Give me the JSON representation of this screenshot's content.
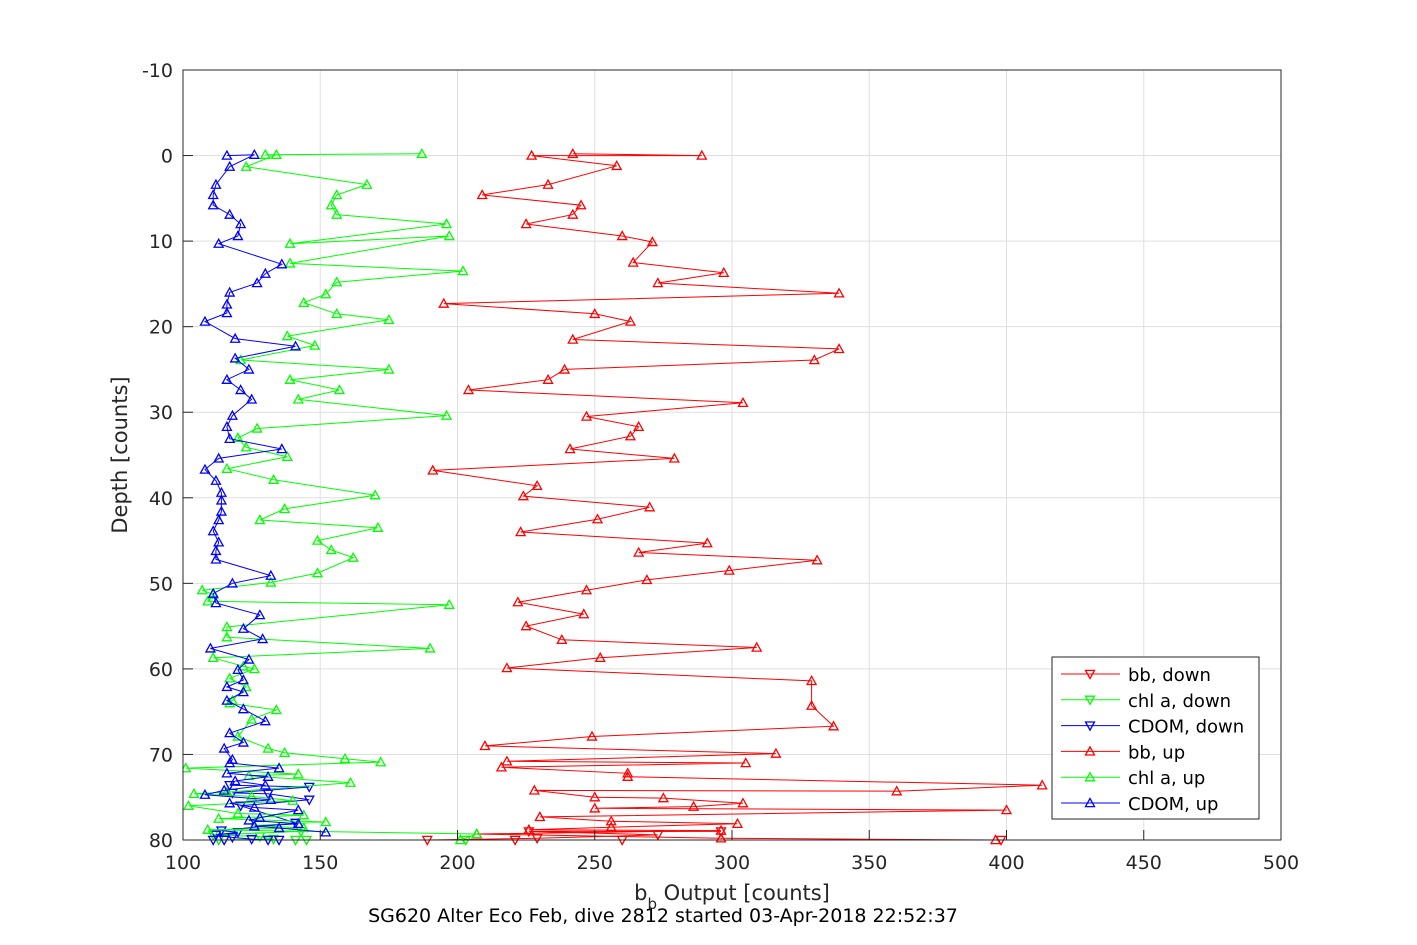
{
  "chart_data": {
    "type": "line",
    "xlabel": "b",
    "xlabel_sub": "b",
    "xlabel_rest": " Output [counts]",
    "ylabel": "Depth [counts]",
    "caption": "SG620 Alter Eco Feb, dive 2812 started 03-Apr-2018 22:52:37",
    "xlim": [
      100,
      500
    ],
    "ylim": [
      -10,
      80
    ],
    "y_reversed": true,
    "grid": true,
    "xticks": [
      "100",
      "150",
      "200",
      "250",
      "300",
      "350",
      "400",
      "450",
      "500"
    ],
    "yticks": [
      "-10",
      "0",
      "10",
      "20",
      "30",
      "40",
      "50",
      "60",
      "70",
      "80"
    ],
    "legend_position": "bottom-right",
    "series": [
      {
        "name": "bb, down",
        "color": "#ff0000",
        "marker": "down",
        "points": [
          [
            296,
            79
          ],
          [
            226,
            79
          ],
          [
            273,
            79.4
          ],
          [
            229,
            79.8
          ],
          [
            189,
            80
          ],
          [
            221,
            80
          ],
          [
            260,
            80
          ],
          [
            398,
            80
          ]
        ]
      },
      {
        "name": "chl a, down",
        "color": "#00ff00",
        "marker": "down",
        "points": [
          [
            143,
            79
          ],
          [
            111,
            79.4
          ],
          [
            128,
            79.6
          ],
          [
            133,
            79.9
          ],
          [
            113,
            80
          ],
          [
            141,
            80
          ],
          [
            145,
            80
          ],
          [
            203,
            80
          ]
        ]
      },
      {
        "name": "CDOM, down",
        "color": "#0000ff",
        "marker": "down",
        "points": [
          [
            117,
            73.6
          ],
          [
            146,
            73.8
          ],
          [
            118,
            74.5
          ],
          [
            131,
            74.6
          ],
          [
            146,
            75.3
          ],
          [
            121,
            76
          ],
          [
            141,
            78
          ],
          [
            114,
            78.9
          ],
          [
            120,
            79.1
          ],
          [
            112,
            79.4
          ],
          [
            118,
            79.7
          ],
          [
            125,
            79.9
          ],
          [
            131,
            80
          ],
          [
            115,
            80
          ],
          [
            111,
            80
          ],
          [
            135,
            80
          ]
        ]
      },
      {
        "name": "bb, up",
        "color": "#ff0000",
        "marker": "up",
        "points": [
          [
            396,
            80
          ],
          [
            296,
            79.8
          ],
          [
            207,
            79.3
          ],
          [
            296,
            78.9
          ],
          [
            226,
            78.8
          ],
          [
            256,
            78.5
          ],
          [
            302,
            78.1
          ],
          [
            256,
            77.8
          ],
          [
            230,
            77.3
          ],
          [
            400,
            76.5
          ],
          [
            250,
            76.3
          ],
          [
            286,
            76.1
          ],
          [
            304,
            75.7
          ],
          [
            275,
            75.1
          ],
          [
            250,
            75
          ],
          [
            228,
            74.2
          ],
          [
            360,
            74.3
          ],
          [
            413,
            73.6
          ],
          [
            262,
            72.6
          ],
          [
            262,
            72.2
          ],
          [
            216,
            71.5
          ],
          [
            305,
            71
          ],
          [
            218,
            70.8
          ],
          [
            316,
            69.9
          ],
          [
            210,
            69
          ],
          [
            249,
            67.9
          ],
          [
            337,
            66.7
          ],
          [
            329,
            64.3
          ],
          [
            329,
            61.4
          ],
          [
            218,
            59.9
          ],
          [
            252,
            58.7
          ],
          [
            309,
            57.5
          ],
          [
            238,
            56.6
          ],
          [
            225,
            55
          ],
          [
            246,
            53.6
          ],
          [
            222,
            52.2
          ],
          [
            247,
            50.8
          ],
          [
            269,
            49.6
          ],
          [
            299,
            48.5
          ],
          [
            331,
            47.3
          ],
          [
            266,
            46.4
          ],
          [
            291,
            45.3
          ],
          [
            223,
            44
          ],
          [
            251,
            42.5
          ],
          [
            270,
            41.1
          ],
          [
            224,
            39.8
          ],
          [
            229,
            38.6
          ],
          [
            191,
            36.8
          ],
          [
            279,
            35.4
          ],
          [
            241,
            34.3
          ],
          [
            263,
            32.8
          ],
          [
            266,
            31.7
          ],
          [
            247,
            30.5
          ],
          [
            304,
            28.9
          ],
          [
            204,
            27.4
          ],
          [
            233,
            26.2
          ],
          [
            239,
            25
          ],
          [
            330,
            23.9
          ],
          [
            339,
            22.6
          ],
          [
            242,
            21.5
          ],
          [
            263,
            19.4
          ],
          [
            250,
            18.5
          ],
          [
            195,
            17.3
          ],
          [
            339,
            16.1
          ],
          [
            273,
            14.9
          ],
          [
            297,
            13.7
          ],
          [
            264,
            12.5
          ],
          [
            271,
            10.1
          ],
          [
            260,
            9.4
          ],
          [
            225,
            8
          ],
          [
            242,
            6.9
          ],
          [
            245,
            5.8
          ],
          [
            209,
            4.6
          ],
          [
            233,
            3.4
          ],
          [
            258,
            1.2
          ],
          [
            227,
            0
          ],
          [
            289,
            0
          ],
          [
            242,
            -0.2
          ]
        ]
      },
      {
        "name": "chl a, up",
        "color": "#00ff00",
        "marker": "up",
        "points": [
          [
            201,
            80
          ],
          [
            207,
            79.3
          ],
          [
            109,
            78.8
          ],
          [
            144,
            78.6
          ],
          [
            126,
            78.3
          ],
          [
            152,
            77.9
          ],
          [
            113,
            77.5
          ],
          [
            144,
            77.1
          ],
          [
            120,
            76.9
          ],
          [
            102,
            76
          ],
          [
            140,
            75.4
          ],
          [
            125,
            74.9
          ],
          [
            104,
            74.6
          ],
          [
            116,
            74.4
          ],
          [
            161,
            73.3
          ],
          [
            124,
            72.5
          ],
          [
            142,
            72.3
          ],
          [
            101,
            71.6
          ],
          [
            172,
            70.9
          ],
          [
            159,
            70.5
          ],
          [
            137,
            69.8
          ],
          [
            131,
            69.3
          ],
          [
            120,
            67.9
          ],
          [
            125,
            65.9
          ],
          [
            134,
            64.8
          ],
          [
            117,
            64
          ],
          [
            118,
            63.7
          ],
          [
            123,
            62.1
          ],
          [
            117,
            61.1
          ],
          [
            126,
            60
          ],
          [
            122,
            59.7
          ],
          [
            111,
            58.7
          ],
          [
            190,
            57.6
          ],
          [
            116,
            56.3
          ],
          [
            116,
            55.1
          ],
          [
            197,
            52.5
          ],
          [
            109,
            52.1
          ],
          [
            111,
            51.3
          ],
          [
            107,
            50.8
          ],
          [
            132,
            49.9
          ],
          [
            149,
            48.8
          ],
          [
            162,
            47
          ],
          [
            154,
            46.1
          ],
          [
            149,
            45
          ],
          [
            171,
            43.5
          ],
          [
            128,
            42.6
          ],
          [
            137,
            41.3
          ],
          [
            170,
            39.7
          ],
          [
            133,
            37.9
          ],
          [
            116,
            36.6
          ],
          [
            138,
            35.2
          ],
          [
            123,
            34.1
          ],
          [
            120,
            33
          ],
          [
            127,
            31.9
          ],
          [
            196,
            30.4
          ],
          [
            142,
            28.5
          ],
          [
            157,
            27.4
          ],
          [
            139,
            26.2
          ],
          [
            175,
            25
          ],
          [
            121,
            23.9
          ],
          [
            148,
            22.2
          ],
          [
            138,
            21.1
          ],
          [
            175,
            19.2
          ],
          [
            156,
            18.5
          ],
          [
            144,
            17.2
          ],
          [
            152,
            16.2
          ],
          [
            156,
            14.8
          ],
          [
            202,
            13.5
          ],
          [
            139,
            12.6
          ],
          [
            197,
            9.4
          ],
          [
            139,
            10.3
          ],
          [
            196,
            8
          ],
          [
            156,
            6.9
          ],
          [
            154,
            5.8
          ],
          [
            156,
            4.6
          ],
          [
            167,
            3.4
          ],
          [
            123,
            1.3
          ],
          [
            134,
            -0.1
          ],
          [
            130,
            -0.1
          ],
          [
            187,
            -0.2
          ]
        ]
      },
      {
        "name": "CDOM, up",
        "color": "#0000ff",
        "marker": "up",
        "points": [
          [
            152,
            79.1
          ],
          [
            135,
            78.6
          ],
          [
            126,
            78.4
          ],
          [
            142,
            78.1
          ],
          [
            124,
            77.7
          ],
          [
            128,
            77.4
          ],
          [
            142,
            76.5
          ],
          [
            126,
            76.2
          ],
          [
            117,
            75.7
          ],
          [
            132,
            75.3
          ],
          [
            108,
            74.7
          ],
          [
            115,
            74.2
          ],
          [
            130,
            73.6
          ],
          [
            119,
            73.1
          ],
          [
            131,
            72.6
          ],
          [
            116,
            72.2
          ],
          [
            135,
            71.6
          ],
          [
            117,
            71
          ],
          [
            118,
            70.6
          ],
          [
            115,
            69.3
          ],
          [
            122,
            68.6
          ],
          [
            117,
            67.5
          ],
          [
            130,
            66.1
          ],
          [
            122,
            64.7
          ],
          [
            116,
            63.7
          ],
          [
            122,
            62.7
          ],
          [
            116,
            62.1
          ],
          [
            122,
            61.3
          ],
          [
            120,
            60.1
          ],
          [
            124,
            58.9
          ],
          [
            110,
            57.6
          ],
          [
            129,
            56.5
          ],
          [
            122,
            55.3
          ],
          [
            128,
            53.7
          ],
          [
            112,
            52.3
          ],
          [
            111,
            51.2
          ],
          [
            118,
            50
          ],
          [
            132,
            49.1
          ],
          [
            112,
            47.2
          ],
          [
            112,
            46.2
          ],
          [
            113,
            45.2
          ],
          [
            111,
            43.9
          ],
          [
            113,
            42.6
          ],
          [
            114,
            41.6
          ],
          [
            114,
            40.3
          ],
          [
            114,
            39.4
          ],
          [
            112,
            38
          ],
          [
            108,
            36.7
          ],
          [
            113,
            35.4
          ],
          [
            136,
            34.3
          ],
          [
            117,
            33.1
          ],
          [
            116,
            31.7
          ],
          [
            118,
            30.4
          ],
          [
            125,
            28.5
          ],
          [
            121,
            27.4
          ],
          [
            116,
            26.2
          ],
          [
            124,
            25
          ],
          [
            119,
            23.7
          ],
          [
            141,
            22.3
          ],
          [
            119,
            21.4
          ],
          [
            108,
            19.4
          ],
          [
            116,
            18.4
          ],
          [
            116,
            17.4
          ],
          [
            117,
            16
          ],
          [
            127,
            14.9
          ],
          [
            130,
            13.8
          ],
          [
            136,
            12.7
          ],
          [
            113,
            10.3
          ],
          [
            120,
            9.4
          ],
          [
            121,
            8
          ],
          [
            117,
            6.9
          ],
          [
            111,
            5.8
          ],
          [
            111,
            4.6
          ],
          [
            112,
            3.4
          ],
          [
            117,
            1.3
          ],
          [
            126,
            -0.1
          ],
          [
            116,
            0
          ]
        ]
      }
    ]
  }
}
